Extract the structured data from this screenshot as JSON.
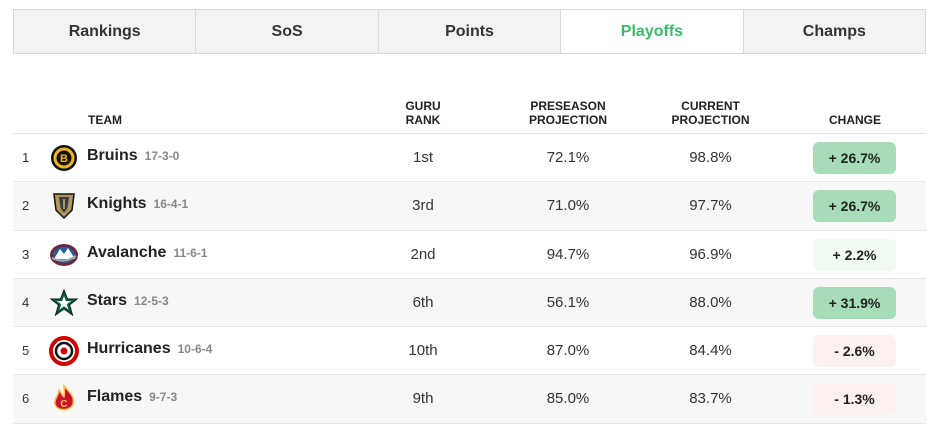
{
  "tabs": [
    {
      "label": "Rankings",
      "active": false
    },
    {
      "label": "SoS",
      "active": false
    },
    {
      "label": "Points",
      "active": false
    },
    {
      "label": "Playoffs",
      "active": true
    },
    {
      "label": "Champs",
      "active": false
    }
  ],
  "colors": {
    "active_tab": "#3cba6a",
    "badge_strong_up": "#a6dcb8",
    "badge_light_up": "#f1faf3",
    "badge_down": "#fcf1ef"
  },
  "table": {
    "headers": {
      "team": "TEAM",
      "guru_rank_line1": "GURU",
      "guru_rank_line2": "RANK",
      "preseason_line1": "PRESEASON",
      "preseason_line2": "PROJECTION",
      "current_line1": "CURRENT",
      "current_line2": "PROJECTION",
      "change": "CHANGE"
    },
    "rows": [
      {
        "rank": "1",
        "team": "Bruins",
        "record": "17-3-0",
        "logo_icon": "bruins-logo-icon",
        "guru_rank": "1st",
        "preseason": "72.1%",
        "current": "98.8%",
        "change": "+ 26.7%",
        "change_style": "strong-up"
      },
      {
        "rank": "2",
        "team": "Knights",
        "record": "16-4-1",
        "logo_icon": "golden-knights-logo-icon",
        "guru_rank": "3rd",
        "preseason": "71.0%",
        "current": "97.7%",
        "change": "+ 26.7%",
        "change_style": "strong-up"
      },
      {
        "rank": "3",
        "team": "Avalanche",
        "record": "11-6-1",
        "logo_icon": "avalanche-logo-icon",
        "guru_rank": "2nd",
        "preseason": "94.7%",
        "current": "96.9%",
        "change": "+ 2.2%",
        "change_style": "light-up"
      },
      {
        "rank": "4",
        "team": "Stars",
        "record": "12-5-3",
        "logo_icon": "stars-logo-icon",
        "guru_rank": "6th",
        "preseason": "56.1%",
        "current": "88.0%",
        "change": "+ 31.9%",
        "change_style": "strong-up"
      },
      {
        "rank": "5",
        "team": "Hurricanes",
        "record": "10-6-4",
        "logo_icon": "hurricanes-logo-icon",
        "guru_rank": "10th",
        "preseason": "87.0%",
        "current": "84.4%",
        "change": "- 2.6%",
        "change_style": "down"
      },
      {
        "rank": "6",
        "team": "Flames",
        "record": "9-7-3",
        "logo_icon": "flames-logo-icon",
        "guru_rank": "9th",
        "preseason": "85.0%",
        "current": "83.7%",
        "change": "- 1.3%",
        "change_style": "down"
      }
    ]
  }
}
